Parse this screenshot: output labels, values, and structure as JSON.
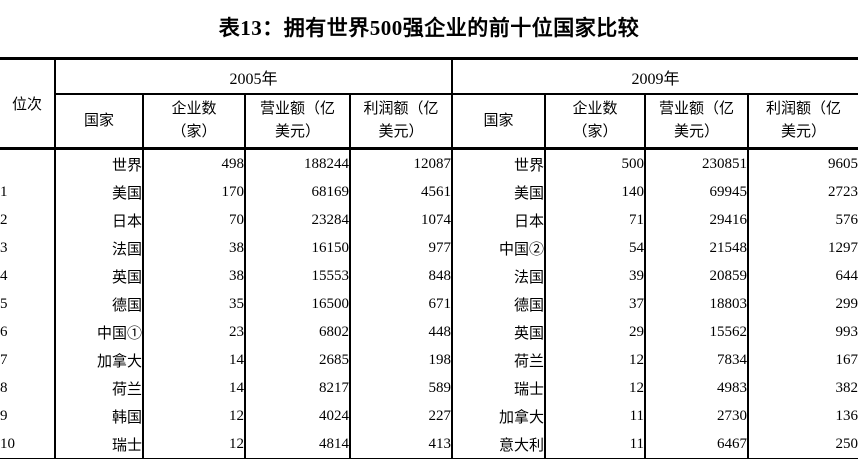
{
  "title": "表13：拥有世界500强企业的前十位国家比较",
  "colors": {
    "background": "#ffffff",
    "text": "#000000",
    "border": "#000000"
  },
  "table": {
    "rank_header": "位次",
    "sections": [
      {
        "year": "2005年",
        "columns": [
          {
            "line1": "国家",
            "line2": ""
          },
          {
            "line1": "企业数",
            "line2": "（家）"
          },
          {
            "line1": "营业额（亿",
            "line2": "美元）"
          },
          {
            "line1": "利润额（亿",
            "line2": "美元）"
          }
        ]
      },
      {
        "year": "2009年",
        "columns": [
          {
            "line1": "国家",
            "line2": ""
          },
          {
            "line1": "企业数",
            "line2": "（家）"
          },
          {
            "line1": "营业额（亿",
            "line2": "美元）"
          },
          {
            "line1": "利润额（亿",
            "line2": "美元）"
          }
        ]
      }
    ],
    "rows": [
      {
        "rank": "",
        "y2005": {
          "country": "世界",
          "companies": "498",
          "revenue": "188244",
          "profit": "12087"
        },
        "y2009": {
          "country": "世界",
          "companies": "500",
          "revenue": "230851",
          "profit": "9605"
        }
      },
      {
        "rank": "1",
        "y2005": {
          "country": "美国",
          "companies": "170",
          "revenue": "68169",
          "profit": "4561"
        },
        "y2009": {
          "country": "美国",
          "companies": "140",
          "revenue": "69945",
          "profit": "2723"
        }
      },
      {
        "rank": "2",
        "y2005": {
          "country": "日本",
          "companies": "70",
          "revenue": "23284",
          "profit": "1074"
        },
        "y2009": {
          "country": "日本",
          "companies": "71",
          "revenue": "29416",
          "profit": "576"
        }
      },
      {
        "rank": "3",
        "y2005": {
          "country": "法国",
          "companies": "38",
          "revenue": "16150",
          "profit": "977"
        },
        "y2009": {
          "country": "中国②",
          "companies": "54",
          "revenue": "21548",
          "profit": "1297"
        }
      },
      {
        "rank": "4",
        "y2005": {
          "country": "英国",
          "companies": "38",
          "revenue": "15553",
          "profit": "848"
        },
        "y2009": {
          "country": "法国",
          "companies": "39",
          "revenue": "20859",
          "profit": "644"
        }
      },
      {
        "rank": "5",
        "y2005": {
          "country": "德国",
          "companies": "35",
          "revenue": "16500",
          "profit": "671"
        },
        "y2009": {
          "country": "德国",
          "companies": "37",
          "revenue": "18803",
          "profit": "299"
        }
      },
      {
        "rank": "6",
        "y2005": {
          "country": "中国①",
          "companies": "23",
          "revenue": "6802",
          "profit": "448"
        },
        "y2009": {
          "country": "英国",
          "companies": "29",
          "revenue": "15562",
          "profit": "993"
        }
      },
      {
        "rank": "7",
        "y2005": {
          "country": "加拿大",
          "companies": "14",
          "revenue": "2685",
          "profit": "198"
        },
        "y2009": {
          "country": "荷兰",
          "companies": "12",
          "revenue": "7834",
          "profit": "167"
        }
      },
      {
        "rank": "8",
        "y2005": {
          "country": "荷兰",
          "companies": "14",
          "revenue": "8217",
          "profit": "589"
        },
        "y2009": {
          "country": "瑞士",
          "companies": "12",
          "revenue": "4983",
          "profit": "382"
        }
      },
      {
        "rank": "9",
        "y2005": {
          "country": "韩国",
          "companies": "12",
          "revenue": "4024",
          "profit": "227"
        },
        "y2009": {
          "country": "加拿大",
          "companies": "11",
          "revenue": "2730",
          "profit": "136"
        }
      },
      {
        "rank": "10",
        "y2005": {
          "country": "瑞士",
          "companies": "12",
          "revenue": "4814",
          "profit": "413"
        },
        "y2009": {
          "country": "意大利",
          "companies": "11",
          "revenue": "6467",
          "profit": "250"
        }
      }
    ]
  }
}
